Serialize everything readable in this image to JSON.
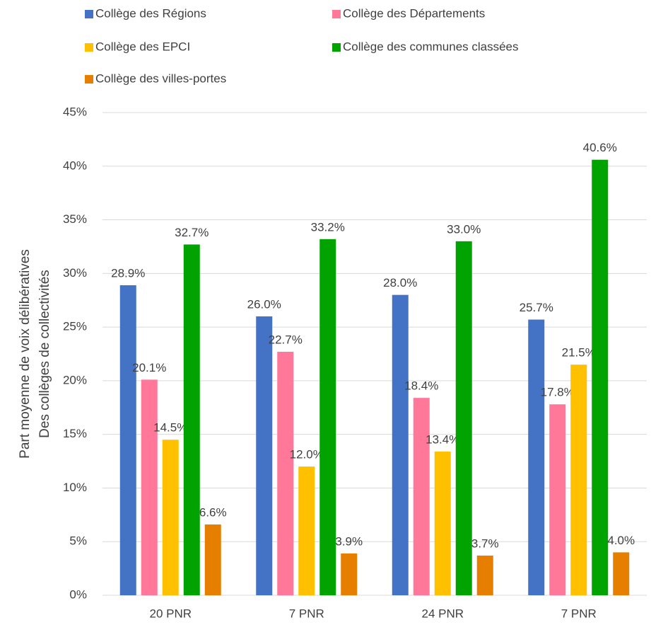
{
  "chart_data": {
    "type": "bar",
    "y_label": [
      "Part moyenne de voix délibératives",
      "Des collèges de collectivités"
    ],
    "categories": [
      "20 PNR",
      "7 PNR",
      "24 PNR",
      "7 PNR"
    ],
    "series": [
      {
        "name": "Collège des Régions",
        "color": "#4472c4",
        "values": [
          28.9,
          26.0,
          28.0,
          25.7
        ],
        "value_labels": [
          "28.9%",
          "26.0%",
          "28.0%",
          "25.7%"
        ]
      },
      {
        "name": "Collège des Départements",
        "color": "#ff7899",
        "values": [
          20.1,
          22.7,
          18.4,
          17.8
        ],
        "value_labels": [
          "20.1%",
          "22.7%",
          "18.4%",
          "17.8%"
        ]
      },
      {
        "name": "Collège des EPCI",
        "color": "#ffc000",
        "values": [
          14.5,
          12.0,
          13.4,
          21.5
        ],
        "value_labels": [
          "14.5%",
          "12.0%",
          "13.4%",
          "21.5%"
        ]
      },
      {
        "name": "Collège des communes classées",
        "color": "#00a300",
        "values": [
          32.7,
          33.2,
          33.0,
          40.6
        ],
        "value_labels": [
          "32.7%",
          "33.2%",
          "33.0%",
          "40.6%"
        ]
      },
      {
        "name": "Collège des villes-portes",
        "color": "#e67e00",
        "values": [
          6.6,
          3.9,
          3.7,
          4.0
        ],
        "value_labels": [
          "6.6%",
          "3.9%",
          "3.7%",
          "4.0%"
        ]
      }
    ],
    "ylim": [
      0,
      45
    ],
    "yticks": [
      {
        "value": 0,
        "label": "0%"
      },
      {
        "value": 5,
        "label": "5%"
      },
      {
        "value": 10,
        "label": "10%"
      },
      {
        "value": 15,
        "label": "15%"
      },
      {
        "value": 20,
        "label": "20%"
      },
      {
        "value": 25,
        "label": "25%"
      },
      {
        "value": 30,
        "label": "30%"
      },
      {
        "value": 35,
        "label": "35%"
      },
      {
        "value": 40,
        "label": "40%"
      },
      {
        "value": 45,
        "label": "45%"
      }
    ],
    "grid": true,
    "legend": "top"
  }
}
